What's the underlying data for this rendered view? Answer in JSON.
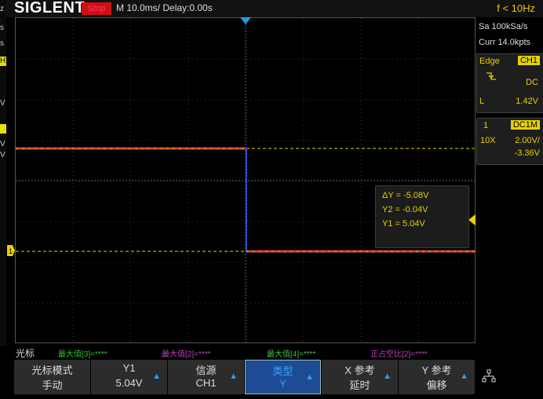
{
  "topbar": {
    "logo": "SIGLENT",
    "run_state": "Stop",
    "timebase": "M 10.0ms/ Delay:0.00s",
    "frequency": "f < 10Hz"
  },
  "left_strip": [
    "z",
    "s",
    "s",
    "H",
    "V",
    "",
    "V",
    "V"
  ],
  "right_panel": {
    "sample_rate": "Sa 100kSa/s",
    "memory_depth": "Curr 14.0kpts",
    "trigger": {
      "mode": "Edge",
      "source": "CH1",
      "coupling": "DC",
      "level_label": "L",
      "level": "1.42V"
    },
    "channel": {
      "number": "1",
      "coupling": "DC1M",
      "probe": "10X",
      "scale": "2.00V/",
      "offset": "-3.36V"
    }
  },
  "cursor_readout": {
    "delta_y": "ΔY = -5.08V",
    "y2": "Y2 = -0.04V",
    "y1": "Y1 = 5.04V"
  },
  "measure_row": {
    "title": "光标",
    "items": [
      {
        "text": "最大值[3]=****",
        "color": "#30c030"
      },
      {
        "text": "最大值[2]=****",
        "color": "#c040c0"
      },
      {
        "text": "最大值[4]=****",
        "color": "#40c040"
      },
      {
        "text": "正占空比[2]=****",
        "color": "#c040c0"
      }
    ]
  },
  "menu": [
    {
      "line1": "光标模式",
      "line2": "手动",
      "arrow": false,
      "active": false
    },
    {
      "line1": "Y1",
      "line2": "5.04V",
      "arrow": true,
      "active": false
    },
    {
      "line1": "信源",
      "line2": "CH1",
      "arrow": true,
      "active": false
    },
    {
      "line1": "类型",
      "line2": "Y",
      "arrow": true,
      "active": true
    },
    {
      "line1": "X 参考",
      "line2": "延时",
      "arrow": true,
      "active": false
    },
    {
      "line1": "Y 参考",
      "line2": "偏移",
      "arrow": true,
      "active": false
    }
  ],
  "colors": {
    "ch1": "#e6d200",
    "ch2": "#d040d0",
    "accent": "#2a9df4",
    "stop": "#d01010"
  }
}
